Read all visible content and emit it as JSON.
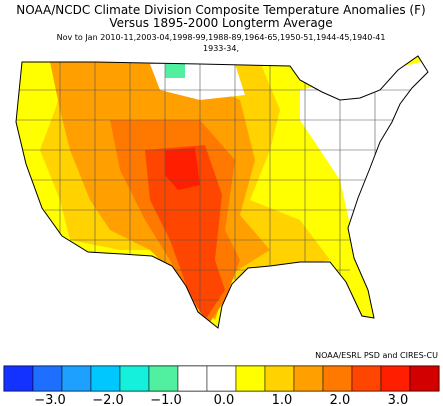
{
  "header": {
    "title": "NOAA/NCDC Climate Division Composite Temperature Anomalies (F)",
    "subtitle": "Versus 1895-2000 Longterm Average",
    "period": "Nov to Jan  2010-11,2003-04,1998-99,1988-89,1964-65,1950-51,1944-45,1940-41",
    "period_cont": "1933-34,"
  },
  "credit": "NOAA/ESRL PSD and CIRES-CU",
  "colorbar": {
    "colors": [
      "#1432ff",
      "#1e6eff",
      "#1ea0ff",
      "#00c8ff",
      "#14f0dc",
      "#50f0a0",
      "#ffffff",
      "#ffffff",
      "#ffff00",
      "#ffd200",
      "#ffa000",
      "#ff7800",
      "#ff4600",
      "#ff1e00",
      "#d20000"
    ],
    "ticks": [
      {
        "value": -3,
        "label": "−3.0"
      },
      {
        "value": -2,
        "label": "−2.0"
      },
      {
        "value": -1,
        "label": "−1.0"
      },
      {
        "value": 0,
        "label": "0.0"
      },
      {
        "value": 1,
        "label": "1.0"
      },
      {
        "value": 2,
        "label": "2.0"
      },
      {
        "value": 3,
        "label": "3.0"
      }
    ]
  }
}
